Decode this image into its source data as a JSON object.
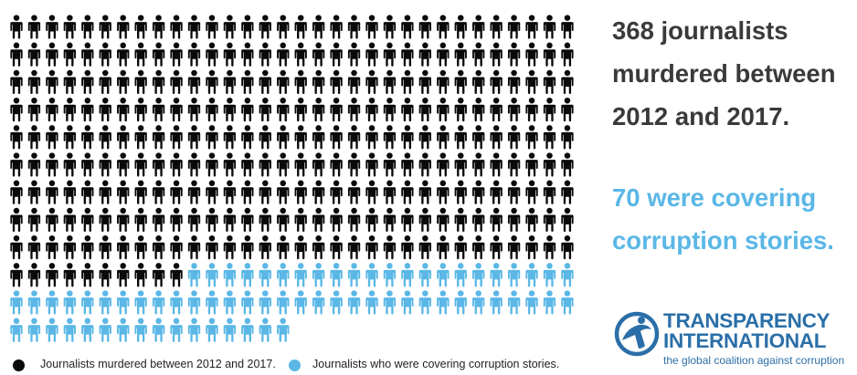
{
  "chart_data": {
    "type": "pictogram",
    "total": 368,
    "covering_corruption": 70,
    "not_covering_corruption": 298,
    "series": [
      {
        "name": "Journalists murdered between 2012 and 2017.",
        "value": 368,
        "color": "#0a0a0a"
      },
      {
        "name": "Journalists who were covering corruption stories.",
        "value": 70,
        "color": "#5ab7e6"
      }
    ],
    "legend_position": "bottom-left",
    "grid": false
  },
  "headline": {
    "total_lines": [
      "368 journalists",
      "murdered between",
      "2012 and 2017."
    ],
    "total_color": "#3a3a3a",
    "corruption_lines": [
      "70 were covering",
      "corruption stories."
    ],
    "corruption_color": "#5ab7e6"
  },
  "legend": [
    {
      "label": "Journalists murdered between 2012 and 2017.",
      "color": "#0a0a0a"
    },
    {
      "label": "Journalists who were covering corruption stories.",
      "color": "#5ab7e6"
    }
  ],
  "logo": {
    "line1": "TRANSPARENCY",
    "line2": "INTERNATIONAL",
    "tagline": "the global coalition against corruption",
    "color": "#2b6fa8",
    "icon": "transparency-international-globe-icon"
  }
}
